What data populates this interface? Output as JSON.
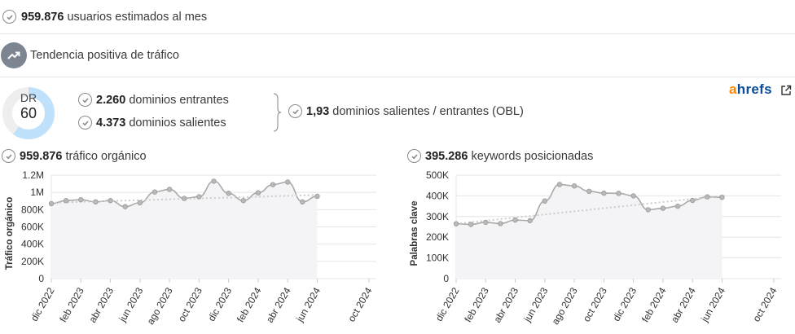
{
  "stats": {
    "users_value": "959.876",
    "users_text": "usuarios estimados al mes",
    "trend_text": "Tendencia positiva de tráfico"
  },
  "dr": {
    "label": "DR",
    "value": "60",
    "fraction": 0.6
  },
  "domains": {
    "incoming_value": "2.260",
    "incoming_text": "dominios entrantes",
    "outgoing_value": "4.373",
    "outgoing_text": "dominios salientes",
    "obl_value": "1,93",
    "obl_text": "dominios salientes / entrantes (OBL)"
  },
  "brand": {
    "a": "a",
    "rest": "hrefs",
    "a_color": "#ff8800",
    "rest_color": "#0a4c9c"
  },
  "organic": {
    "value": "959.876",
    "text": "tráfico orgánico"
  },
  "keywords": {
    "value": "395.286",
    "text": "keywords posicionadas"
  },
  "colors": {
    "line": "#aaaaaa",
    "fill": "#f4f4f6",
    "grid": "#e4e4e4",
    "trend": "#cccccc",
    "donut": "#bfe1fb",
    "donut_track": "#eeeeee"
  },
  "chart_data": [
    {
      "type": "area",
      "ylabel": "Tráfico orgánico",
      "ylim": [
        0,
        1200000
      ],
      "yticks": [
        "0",
        "200K",
        "400K",
        "600K",
        "800K",
        "1M",
        "1.2M"
      ],
      "xticks": [
        "dic 2022",
        "feb 2023",
        "abr 2023",
        "jun 2023",
        "ago 2023",
        "oct 2023",
        "dic 2023",
        "feb 2024",
        "abr 2024",
        "jun 2024",
        "oct 2024"
      ],
      "x_span": [
        0,
        22
      ],
      "xtick_positions": [
        0,
        2,
        4,
        6,
        8,
        10,
        12,
        14,
        16,
        18,
        21.5
      ],
      "points": [
        [
          0,
          870000
        ],
        [
          1,
          905000
        ],
        [
          2,
          915000
        ],
        [
          3,
          890000
        ],
        [
          4,
          905000
        ],
        [
          5,
          835000
        ],
        [
          6,
          880000
        ],
        [
          7,
          1005000
        ],
        [
          8,
          1035000
        ],
        [
          9,
          930000
        ],
        [
          10,
          950000
        ],
        [
          11,
          1130000
        ],
        [
          12,
          990000
        ],
        [
          13,
          905000
        ],
        [
          14,
          995000
        ],
        [
          15,
          1090000
        ],
        [
          16,
          1120000
        ],
        [
          17,
          890000
        ],
        [
          18,
          955000
        ]
      ],
      "trend": [
        [
          0,
          880000
        ],
        [
          18,
          970000
        ]
      ]
    },
    {
      "type": "area",
      "ylabel": "Palabras clave",
      "ylim": [
        0,
        500000
      ],
      "yticks": [
        "0",
        "100K",
        "200K",
        "300K",
        "400K",
        "500K"
      ],
      "xticks": [
        "dic 2022",
        "feb 2023",
        "abr 2023",
        "jun 2023",
        "ago 2023",
        "oct 2023",
        "dic 2023",
        "feb 2024",
        "abr 2024",
        "jun 2024",
        "oct 2024"
      ],
      "x_span": [
        0,
        22
      ],
      "xtick_positions": [
        0,
        2,
        4,
        6,
        8,
        10,
        12,
        14,
        16,
        18,
        21.5
      ],
      "points": [
        [
          0,
          265000
        ],
        [
          1,
          262000
        ],
        [
          2,
          272000
        ],
        [
          3,
          266000
        ],
        [
          4,
          283000
        ],
        [
          5,
          280000
        ],
        [
          6,
          375000
        ],
        [
          7,
          455000
        ],
        [
          8,
          448000
        ],
        [
          9,
          422000
        ],
        [
          10,
          413000
        ],
        [
          11,
          412000
        ],
        [
          12,
          400000
        ],
        [
          13,
          333000
        ],
        [
          14,
          340000
        ],
        [
          15,
          350000
        ],
        [
          16,
          378000
        ],
        [
          17,
          395000
        ],
        [
          18,
          393000
        ]
      ],
      "trend": [
        [
          0,
          265000
        ],
        [
          18,
          400000
        ]
      ]
    }
  ]
}
